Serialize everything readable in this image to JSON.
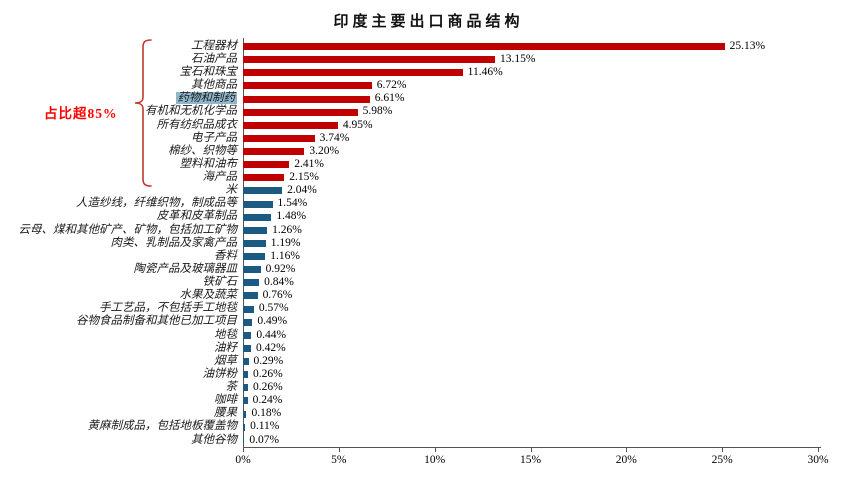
{
  "chart_data": {
    "type": "bar",
    "orientation": "horizontal",
    "title": "印度主要出口商品结构",
    "categories": [
      "工程器材",
      "石油产品",
      "宝石和珠宝",
      "其他商品",
      "药物和制药",
      "有机和无机化学品",
      "所有纺织品成衣",
      "电子产品",
      "棉纱、织物等",
      "塑料和油布",
      "海产品",
      "米",
      "人造纱线，纤维织物，制成品等",
      "皮革和皮革制品",
      "云母、煤和其他矿产、矿物，包括加工矿物",
      "肉类、乳制品及家禽产品",
      "香料",
      "陶瓷产品及玻璃器皿",
      "铁矿石",
      "水果及蔬菜",
      "手工艺品，不包括手工地毯",
      "谷物食品制备和其他已加工项目",
      "地毯",
      "油籽",
      "烟草",
      "油饼粉",
      "茶",
      "咖啡",
      "腰果",
      "黄麻制成品，包括地板覆盖物",
      "其他谷物"
    ],
    "values": [
      25.13,
      13.15,
      11.46,
      6.72,
      6.61,
      5.98,
      4.95,
      3.74,
      3.2,
      2.41,
      2.15,
      2.04,
      1.54,
      1.48,
      1.26,
      1.19,
      1.16,
      0.92,
      0.84,
      0.76,
      0.57,
      0.49,
      0.44,
      0.42,
      0.29,
      0.26,
      0.26,
      0.24,
      0.18,
      0.11,
      0.07
    ],
    "value_suffix": "%",
    "xlim": [
      0,
      30
    ],
    "x_tick_values": [
      0,
      5,
      10,
      15,
      20,
      25,
      30
    ],
    "x_tick_labels": [
      "0%",
      "5%",
      "10%",
      "15%",
      "20%",
      "25%",
      "30%"
    ],
    "grid": false,
    "legend_position": "none",
    "red_bar_count": 11,
    "colors": {
      "red_bars": "#c00000",
      "blue_bars": "#1c5a82",
      "highlight_bg": "#8fb7cc",
      "annotation_red": "#fe0000"
    },
    "highlighted_category": "药物和制药"
  },
  "annotation": {
    "text": "占比超85%"
  }
}
